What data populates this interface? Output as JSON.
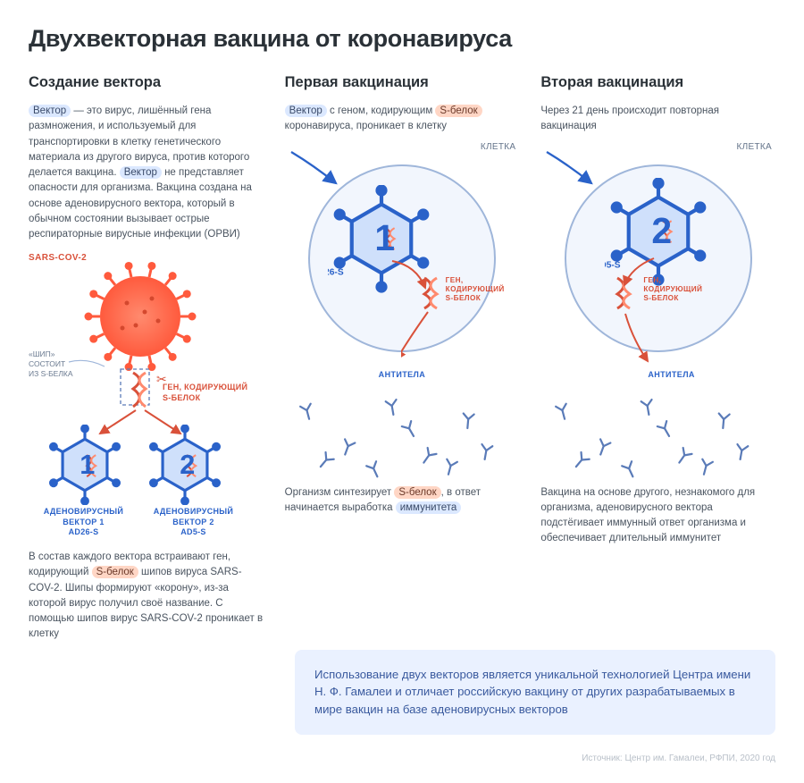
{
  "title": "Двухвекторная вакцина от коронавируса",
  "colors": {
    "heading": "#2a3137",
    "text": "#4a5460",
    "blue_accent": "#2a62c9",
    "blue_light": "#9fb6da",
    "cell_fill": "#f2f6fd",
    "hex_fill": "#cfe0fb",
    "hex_stroke": "#2a62c9",
    "highlight_blue": "#dbe8ff",
    "highlight_orange": "#ffd6c5",
    "orange": "#d9513a",
    "sars_fill": "#ff6a4d",
    "callout_bg": "#eaf1ff",
    "callout_text": "#3a5a9e",
    "muted": "#b9c0c9",
    "antibody": "#5a7bb8"
  },
  "col1": {
    "heading": "Создание вектора",
    "p_parts": [
      {
        "t": "Вектор",
        "hl": "blue"
      },
      {
        "t": " — это вирус, лишённый гена размножения, и используемый для транспортировки в клетку генетического материала из другого вируса, против которого делается вакцина. "
      },
      {
        "t": "Вектор",
        "hl": "blue"
      },
      {
        "t": " не представляет опасности для организма. Вакцина создана на основе аденовирусного вектора, который в обычном состоянии вызывает острые респираторные вирусные инфекции (ОРВИ)"
      }
    ],
    "sars_label": "SARS-COV-2",
    "spike_label": "«ШИП»\nСОСТОИТ\nИЗ S-БЕЛКА",
    "gene_label": "ГЕН, КОДИРУЮЩИЙ\nS-БЕЛОК",
    "vec1_num": "1",
    "vec2_num": "2",
    "vec1_label": "АДЕНОВИРУСНЫЙ\nВЕКТОР 1\nAD26-S",
    "vec2_label": "АДЕНОВИРУСНЫЙ\nВЕКТОР 2\nAD5-S",
    "p2_parts": [
      {
        "t": "В состав каждого вектора встраивают ген, кодирующий "
      },
      {
        "t": "S-белок",
        "hl": "orange"
      },
      {
        "t": " шипов вируса SARS-COV-2. Шипы формируют «корону», из-за которой вирус получил своё название. С помощью шипов вирус SARS-COV-2 проникает в клетку"
      }
    ]
  },
  "col2": {
    "heading": "Первая вакцинация",
    "intro_parts": [
      {
        "t": "Вектор",
        "hl": "blue"
      },
      {
        "t": " с геном, кодирующим "
      },
      {
        "t": "S-белок",
        "hl": "orange"
      },
      {
        "t": " коронавируса, проникает в клетку"
      }
    ],
    "cell_label": "КЛЕТКА",
    "ad_label": "AD26-S",
    "vec_num": "1",
    "gene_label": "ГЕН,\nКОДИРУЮЩИЙ\nS-БЕЛОК",
    "antibody_label": "АНТИТЕЛА",
    "outro_parts": [
      {
        "t": "Организм синтезирует "
      },
      {
        "t": "S-белок",
        "hl": "orange"
      },
      {
        "t": ", в ответ начинается выработка "
      },
      {
        "t": "иммунитета",
        "hl": "blue"
      }
    ]
  },
  "col3": {
    "heading": "Вторая вакцинация",
    "intro": "Через 21 день происходит повторная вакцинация",
    "cell_label": "КЛЕТКА",
    "ad_label": "AD5-S",
    "vec_num": "2",
    "gene_label": "ГЕН,\nКОДИРУЮЩИЙ\nS-БЕЛОК",
    "antibody_label": "АНТИТЕЛА",
    "outro": "Вакцина на основе другого, незнакомого для организма, аденовирусного вектора подстёгивает иммунный ответ организма и обеспечивает длительный иммунитет"
  },
  "callout": "Использование двух векторов является уникальной технологией Центра имени Н. Ф. Гамалеи и отличает российскую вакцину от других разрабатываемых в мире вакцин на базе адено­вирусных векторов",
  "source": "Источник: Центр им. Гамалеи, РФПИ, 2020 год",
  "antibody_positions": [
    [
      15,
      10,
      -15
    ],
    [
      60,
      50,
      20
    ],
    [
      110,
      5,
      -10
    ],
    [
      150,
      60,
      35
    ],
    [
      195,
      20,
      5
    ],
    [
      35,
      65,
      40
    ],
    [
      90,
      75,
      -25
    ],
    [
      175,
      72,
      15
    ],
    [
      130,
      30,
      -30
    ],
    [
      215,
      55,
      10
    ]
  ]
}
